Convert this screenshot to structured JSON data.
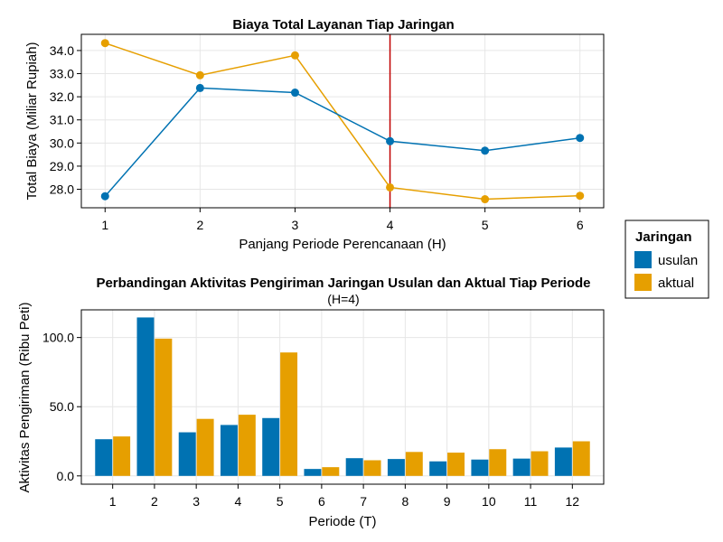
{
  "chart_data": [
    {
      "type": "line",
      "title": "Biaya Total Layanan Tiap Jaringan",
      "xlabel": "Panjang Periode Perencanaan (H)",
      "ylabel": "Total Biaya (Miliar Rupiah)",
      "x": [
        1,
        2,
        3,
        4,
        5,
        6
      ],
      "xlim": [
        0.75,
        6.25
      ],
      "ylim": [
        27.2,
        34.7
      ],
      "yticks": [
        28.0,
        29.0,
        30.0,
        31.0,
        32.0,
        33.0,
        34.0
      ],
      "grid": true,
      "vline": {
        "x": 4,
        "color": "#c00000"
      },
      "series": [
        {
          "name": "usulan",
          "color": "#0072b2",
          "values": [
            27.7,
            32.38,
            32.18,
            30.08,
            29.67,
            30.22
          ]
        },
        {
          "name": "aktual",
          "color": "#e69f00",
          "values": [
            34.32,
            32.93,
            33.79,
            28.08,
            27.57,
            27.72
          ]
        }
      ]
    },
    {
      "type": "bar",
      "title": "Perbandingan Aktivitas Pengiriman Jaringan Usulan dan Aktual Tiap Periode",
      "subtitle": "(H=4)",
      "xlabel": "Periode (T)",
      "ylabel": "Aktivitas Pengiriman (Ribu Peti)",
      "categories": [
        "1",
        "2",
        "3",
        "4",
        "5",
        "6",
        "7",
        "8",
        "9",
        "10",
        "11",
        "12"
      ],
      "ylim": [
        -6,
        120
      ],
      "yticks": [
        0.0,
        50.0,
        100.0
      ],
      "grid": true,
      "series": [
        {
          "name": "usulan",
          "color": "#0072b2",
          "values": [
            26.5,
            114.5,
            31.5,
            36.8,
            41.8,
            5.0,
            12.8,
            12.2,
            10.5,
            11.8,
            12.5,
            20.5
          ]
        },
        {
          "name": "aktual",
          "color": "#e69f00",
          "values": [
            28.5,
            99.2,
            41.2,
            44.2,
            89.2,
            6.3,
            11.3,
            17.3,
            16.8,
            19.3,
            17.8,
            25.0
          ]
        }
      ]
    }
  ],
  "legend": {
    "title": "Jaringan",
    "placement": "right",
    "items": [
      {
        "label": "usulan",
        "color": "#0072b2"
      },
      {
        "label": "aktual",
        "color": "#e69f00"
      }
    ]
  }
}
